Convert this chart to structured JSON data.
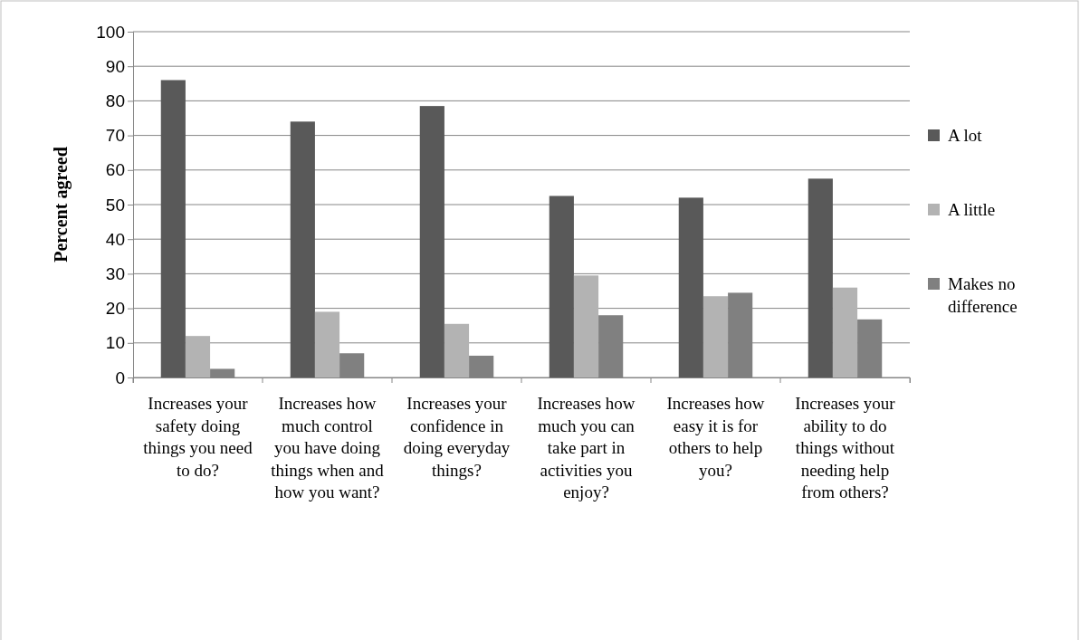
{
  "chart_data": {
    "type": "bar",
    "ylabel": "Percent agreed",
    "categories": [
      "Increases your safety doing things you need to do?",
      "Increases how much control you have doing things when and how you want?",
      "Increases your confidence in doing everyday things?",
      "Increases how much you can take part in activities you enjoy?",
      "Increases how easy it is for others to help you?",
      "Increases your ability to do things without needing help from others?"
    ],
    "series": [
      {
        "name": "A lot",
        "color": "#595959",
        "values": [
          86,
          74,
          78.5,
          52.5,
          52,
          57.5
        ]
      },
      {
        "name": "A little",
        "color": "#b3b3b3",
        "values": [
          12,
          19,
          15.5,
          29.5,
          23.5,
          26
        ]
      },
      {
        "name": "Makes no difference",
        "color": "#808080",
        "values": [
          2.5,
          7,
          6.3,
          18,
          24.5,
          16.8
        ]
      }
    ],
    "ylim": [
      0,
      100
    ],
    "yticks": [
      0,
      10,
      20,
      30,
      40,
      50,
      60,
      70,
      80,
      90,
      100
    ],
    "grid": "y",
    "legend": "right"
  }
}
